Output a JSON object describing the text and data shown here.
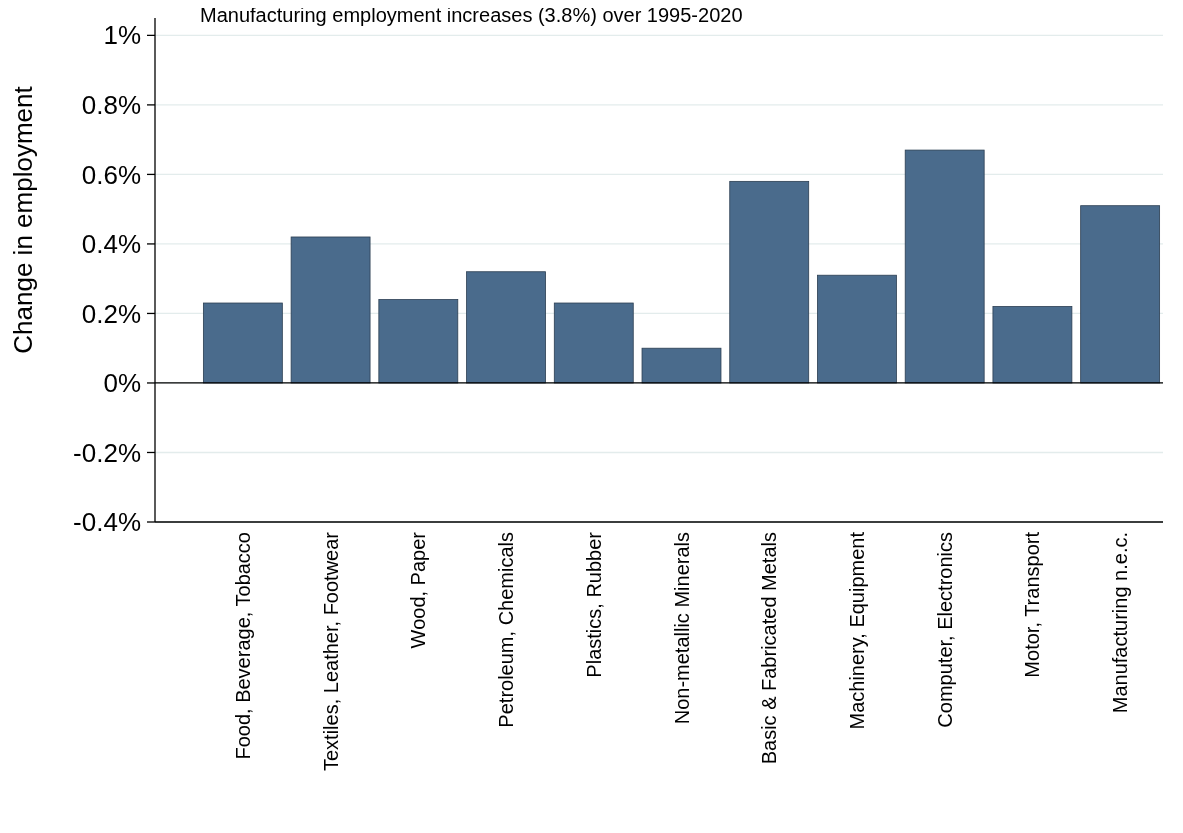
{
  "chart_data": {
    "type": "bar",
    "title": "Manufacturing employment increases (3.8%) over 1995-2020",
    "ylabel": "Change in employment",
    "categories": [
      "Food, Beverage, Tobacco",
      "Textiles, Leather, Footwear",
      "Wood, Paper",
      "Petroleum, Chemicals",
      "Plastics, Rubber",
      "Non-metallic Minerals",
      "Basic & Fabricated Metals",
      "Machinery, Equipment",
      "Computer, Electronics",
      "Motor, Transport",
      "Manufacturing n.e.c."
    ],
    "values": [
      0.23,
      0.42,
      0.24,
      0.32,
      0.23,
      0.1,
      0.58,
      0.31,
      0.67,
      0.22,
      0.51
    ],
    "color": "#4a6b8c",
    "ylim": [
      -0.4,
      1.05
    ],
    "yticks": [
      {
        "value": -0.4,
        "label": "-0.4%"
      },
      {
        "value": -0.2,
        "label": "-0.2%"
      },
      {
        "value": 0,
        "label": "0%"
      },
      {
        "value": 0.2,
        "label": "0.2%"
      },
      {
        "value": 0.4,
        "label": "0.4%"
      },
      {
        "value": 0.6,
        "label": "0.6%"
      },
      {
        "value": 0.8,
        "label": "0.8%"
      },
      {
        "value": 1,
        "label": "1%"
      }
    ],
    "grid": "y",
    "ref_lines": [
      {
        "axis": "y",
        "value": 0,
        "color": "#000000"
      }
    ]
  }
}
